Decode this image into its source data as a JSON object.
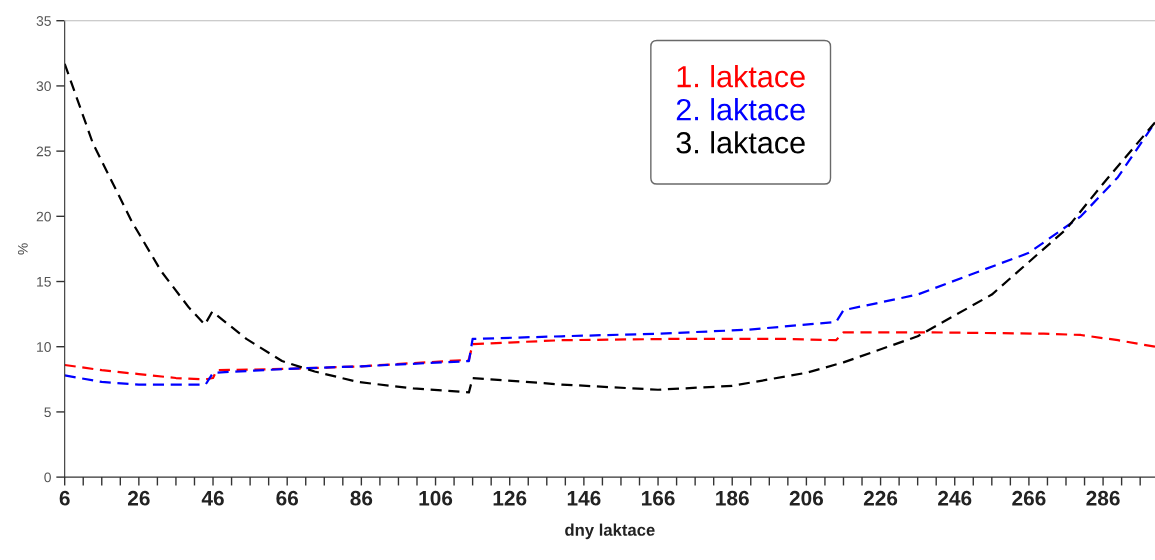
{
  "chart_data": {
    "type": "line",
    "xlabel": "dny laktace",
    "ylabel": "%",
    "xlim": [
      6,
      300
    ],
    "ylim": [
      0,
      35
    ],
    "xticks": [
      6,
      {
        "value": 11,
        "label": null
      },
      {
        "value": 16,
        "label": null
      },
      {
        "value": 21,
        "label": null
      },
      26,
      {
        "value": 31,
        "label": null
      },
      {
        "value": 36,
        "label": null
      },
      {
        "value": 41,
        "label": null
      },
      46,
      {
        "value": 51,
        "label": null
      },
      {
        "value": 56,
        "label": null
      },
      {
        "value": 61,
        "label": null
      },
      66,
      {
        "value": 71,
        "label": null
      },
      {
        "value": 76,
        "label": null
      },
      {
        "value": 81,
        "label": null
      },
      86,
      {
        "value": 91,
        "label": null
      },
      {
        "value": 96,
        "label": null
      },
      {
        "value": 101,
        "label": null
      },
      106,
      {
        "value": 111,
        "label": null
      },
      {
        "value": 116,
        "label": null
      },
      {
        "value": 121,
        "label": null
      },
      126,
      {
        "value": 131,
        "label": null
      },
      {
        "value": 136,
        "label": null
      },
      {
        "value": 141,
        "label": null
      },
      146,
      {
        "value": 151,
        "label": null
      },
      {
        "value": 156,
        "label": null
      },
      {
        "value": 161,
        "label": null
      },
      166,
      {
        "value": 171,
        "label": null
      },
      {
        "value": 176,
        "label": null
      },
      {
        "value": 181,
        "label": null
      },
      186,
      {
        "value": 191,
        "label": null
      },
      {
        "value": 196,
        "label": null
      },
      {
        "value": 201,
        "label": null
      },
      206,
      {
        "value": 211,
        "label": null
      },
      {
        "value": 216,
        "label": null
      },
      {
        "value": 221,
        "label": null
      },
      226,
      {
        "value": 231,
        "label": null
      },
      {
        "value": 236,
        "label": null
      },
      {
        "value": 241,
        "label": null
      },
      246,
      {
        "value": 251,
        "label": null
      },
      {
        "value": 256,
        "label": null
      },
      {
        "value": 261,
        "label": null
      },
      266,
      {
        "value": 271,
        "label": null
      },
      {
        "value": 276,
        "label": null
      },
      {
        "value": 281,
        "label": null
      },
      286,
      {
        "value": 291,
        "label": null
      },
      {
        "value": 296,
        "label": null
      }
    ],
    "yticks": [
      0,
      5,
      10,
      15,
      20,
      25,
      30,
      35
    ],
    "grid": false,
    "legend": "top",
    "line_style": "dashed",
    "marker": "none",
    "series": [
      {
        "name": "1. laktace",
        "color": "#ff0000",
        "x": [
          6,
          16,
          26,
          36,
          44,
          46,
          47,
          66,
          86,
          115,
          116,
          140,
          170,
          200,
          214,
          216,
          240,
          270,
          280,
          290,
          300
        ],
        "values": [
          8.6,
          8.2,
          7.9,
          7.6,
          7.5,
          7.6,
          8.2,
          8.3,
          8.5,
          9.0,
          10.2,
          10.5,
          10.6,
          10.6,
          10.5,
          11.1,
          11.1,
          11.0,
          10.9,
          10.5,
          10.0
        ]
      },
      {
        "name": "2. laktace",
        "color": "#0000ff",
        "x": [
          6,
          16,
          26,
          36,
          44,
          46,
          66,
          86,
          115,
          116,
          140,
          166,
          190,
          214,
          216,
          236,
          250,
          266,
          280,
          290,
          300
        ],
        "values": [
          7.8,
          7.3,
          7.1,
          7.1,
          7.1,
          8.0,
          8.3,
          8.5,
          8.9,
          10.6,
          10.8,
          11.0,
          11.3,
          11.9,
          12.8,
          14.0,
          15.5,
          17.2,
          20.0,
          23.0,
          27.2
        ]
      },
      {
        "name": "3. laktace",
        "color": "#000000",
        "x": [
          6,
          13.6,
          24.1,
          32,
          39.5,
          43.8,
          45.8,
          55,
          64.6,
          73.4,
          85,
          100,
          115,
          116,
          140,
          166,
          186,
          206,
          216,
          236,
          256,
          266,
          276,
          286,
          300
        ],
        "values": [
          31.7,
          25.6,
          19.6,
          15.8,
          13.0,
          11.7,
          12.7,
          10.6,
          8.9,
          8.1,
          7.3,
          6.8,
          6.5,
          7.6,
          7.1,
          6.7,
          7.0,
          8.0,
          8.8,
          10.8,
          14.0,
          16.5,
          19.0,
          22.5,
          27.2
        ]
      }
    ]
  }
}
